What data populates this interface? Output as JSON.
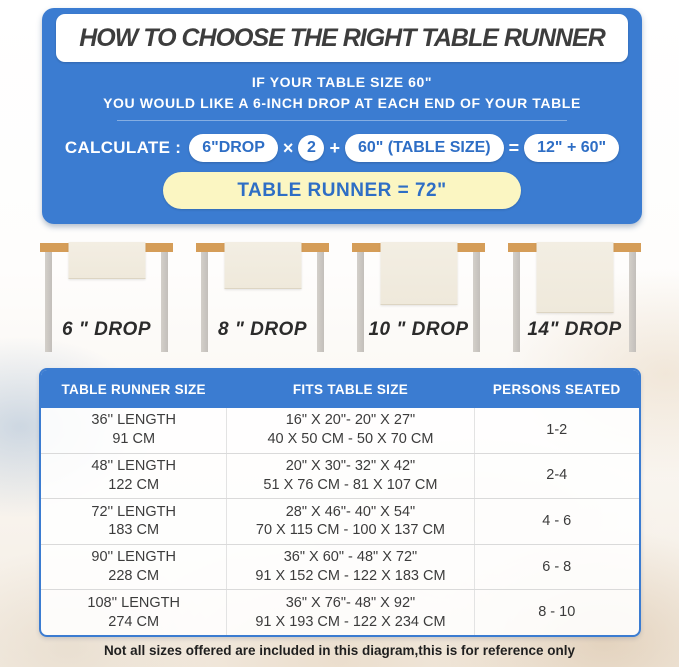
{
  "colors": {
    "panel_blue": "#3b7cd1",
    "pill_text_blue": "#2e6ec5",
    "result_yellow": "#fbf6c2",
    "table_wood": "#d59d58",
    "table_leg_gray": "#c9c5c0",
    "runner_cream": "#f1ebdf"
  },
  "hero": {
    "title": "HOW TO CHOOSE THE RIGHT TABLE RUNNER",
    "subtitle1": "IF YOUR TABLE SIZE 60\"",
    "subtitle2": "YOU WOULD LIKE A 6-INCH DROP AT EACH END OF YOUR TABLE",
    "calc_label": "CALCULATE :",
    "pill_drop": "6\"DROP",
    "op_times": "×",
    "pill_multiplier": "2",
    "op_plus": "+",
    "pill_table_size": "60\" (TABLE SIZE)",
    "op_equals": "=",
    "pill_sum": "12\" + 60\"",
    "result": "TABLE RUNNER = 72\""
  },
  "drops": [
    {
      "label": "6 \" DROP"
    },
    {
      "label": "8 \" DROP"
    },
    {
      "label": "10 \" DROP"
    },
    {
      "label": "14\" DROP"
    }
  ],
  "size_table": {
    "col_headers": [
      "TABLE RUNNER SIZE",
      "FITS TABLE SIZE",
      "PERSONS SEATED"
    ],
    "rows": [
      {
        "len_in": "36'' LENGTH",
        "len_cm": "91 CM",
        "fits_in": "16\" X 20\"- 20\" X 27\"",
        "fits_cm": "40 X 50 CM - 50 X 70 CM",
        "persons": "1-2"
      },
      {
        "len_in": "48'' LENGTH",
        "len_cm": "122 CM",
        "fits_in": "20\" X 30\"- 32\" X 42\"",
        "fits_cm": "51 X 76 CM - 81 X 107 CM",
        "persons": "2-4"
      },
      {
        "len_in": "72'' LENGTH",
        "len_cm": "183 CM",
        "fits_in": "28\" X 46\"- 40\" X 54\"",
        "fits_cm": "70 X 115 CM - 100 X 137 CM",
        "persons": "4 - 6"
      },
      {
        "len_in": "90'' LENGTH",
        "len_cm": "228 CM",
        "fits_in": "36\" X 60\" - 48\" X 72\"",
        "fits_cm": "91 X 152 CM - 122 X 183 CM",
        "persons": "6 - 8"
      },
      {
        "len_in": "108'' LENGTH",
        "len_cm": "274 CM",
        "fits_in": "36\" X 76\"- 48\" X 92\"",
        "fits_cm": "91 X 193 CM - 122 X 234 CM",
        "persons": "8 - 10"
      }
    ]
  },
  "footer_note": "Not all sizes offered are included in this diagram,this is for reference only"
}
